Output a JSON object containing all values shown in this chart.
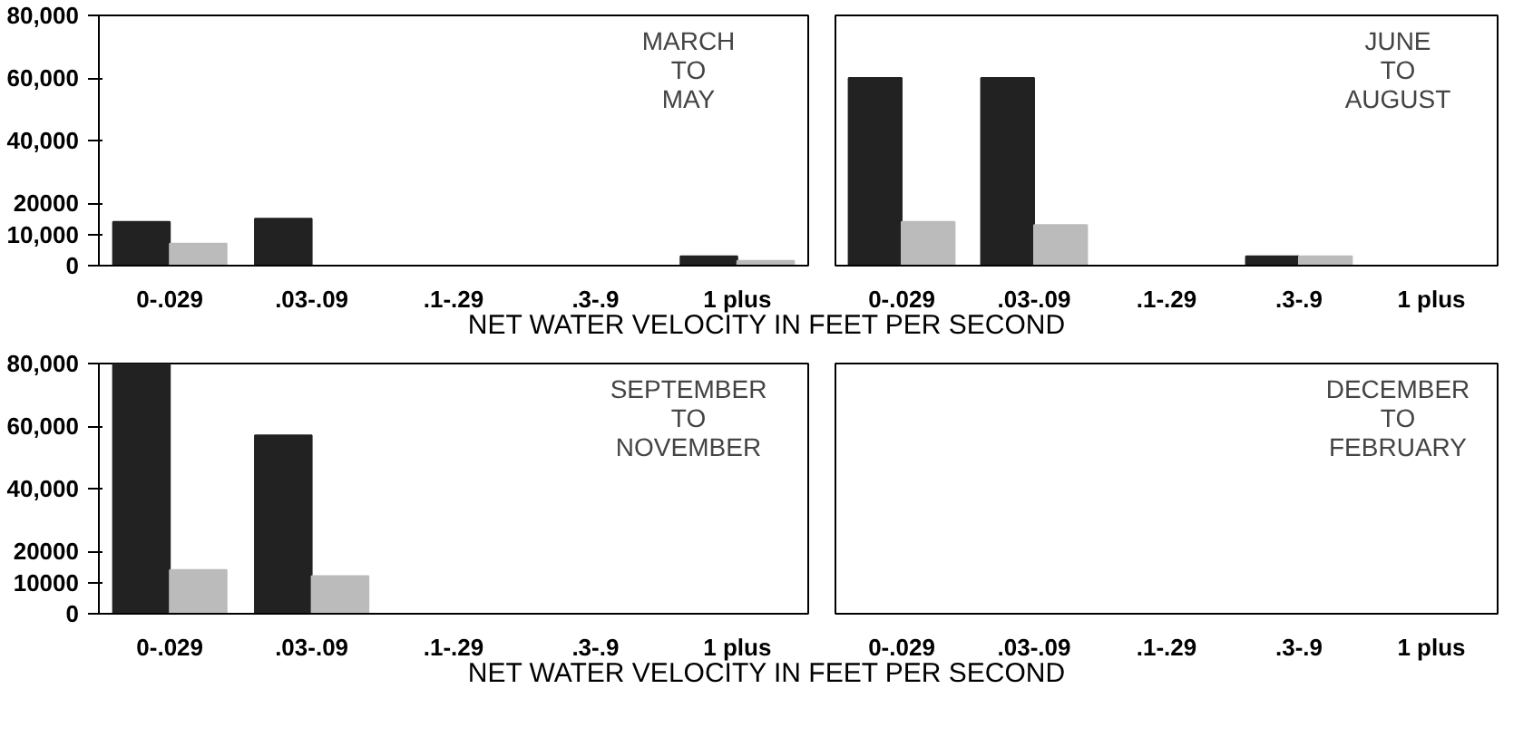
{
  "chart_data": [
    {
      "type": "bar",
      "title": "MARCH\nTO\nMAY",
      "xlabel": "NET WATER VELOCITY IN FEET PER SECOND",
      "categories": [
        "0-.029",
        ".03-.09",
        ".1-.29",
        ".3-.9",
        "1 plus"
      ],
      "series": [
        {
          "color": "#222222",
          "values": [
            14000,
            15000,
            null,
            null,
            3000
          ]
        },
        {
          "color": "#bbbbbb",
          "values": [
            7000,
            null,
            null,
            null,
            1500
          ]
        }
      ],
      "ylim": [
        0,
        80000
      ],
      "yticks": [
        0,
        {
          "value": 10000,
          "label": "10,000"
        },
        {
          "value": 20000,
          "label": "20000"
        },
        {
          "value": 40000,
          "label": "40,000"
        },
        {
          "value": 60000,
          "label": "60,000"
        },
        {
          "value": 80000,
          "label": "80,000"
        }
      ],
      "grid": false
    },
    {
      "type": "bar",
      "title": "JUNE\nTO\nAUGUST",
      "categories": [
        "0-.029",
        ".03-.09",
        ".1-.29",
        ".3-.9",
        "1 plus"
      ],
      "series": [
        {
          "color": "#222222",
          "values": [
            60000,
            60000,
            null,
            3000,
            null
          ]
        },
        {
          "color": "#bbbbbb",
          "values": [
            14000,
            13000,
            null,
            3000,
            null
          ]
        }
      ],
      "ylim": [
        0,
        80000
      ],
      "tick_labels": "x",
      "grid": false
    },
    {
      "type": "bar",
      "title": "SEPTEMBER\nTO\nNOVEMBER",
      "xlabel": "NET WATER VELOCITY IN FEET PER SECOND",
      "categories": [
        "0-.029",
        ".03-.09",
        ".1-.29",
        ".3-.9",
        "1 plus"
      ],
      "series": [
        {
          "color": "#222222",
          "values": [
            80000,
            57000,
            null,
            null,
            null
          ]
        },
        {
          "color": "#bbbbbb",
          "values": [
            14000,
            12000,
            null,
            null,
            null
          ]
        }
      ],
      "ylim": [
        0,
        80000
      ],
      "yticks": [
        0,
        {
          "value": 10000,
          "label": "10000"
        },
        {
          "value": 20000,
          "label": "20000"
        },
        {
          "value": 40000,
          "label": "40,000"
        },
        {
          "value": 60000,
          "label": "60,000"
        },
        {
          "value": 80000,
          "label": "80,000"
        }
      ],
      "grid": false
    },
    {
      "type": "bar",
      "title": "DECEMBER\nTO\nFEBRUARY",
      "categories": [
        "0-.029",
        ".03-.09",
        ".1-.29",
        ".3-.9",
        "1 plus"
      ],
      "ylim": [
        0,
        80000
      ],
      "tick_labels": "x",
      "grid": false
    }
  ]
}
